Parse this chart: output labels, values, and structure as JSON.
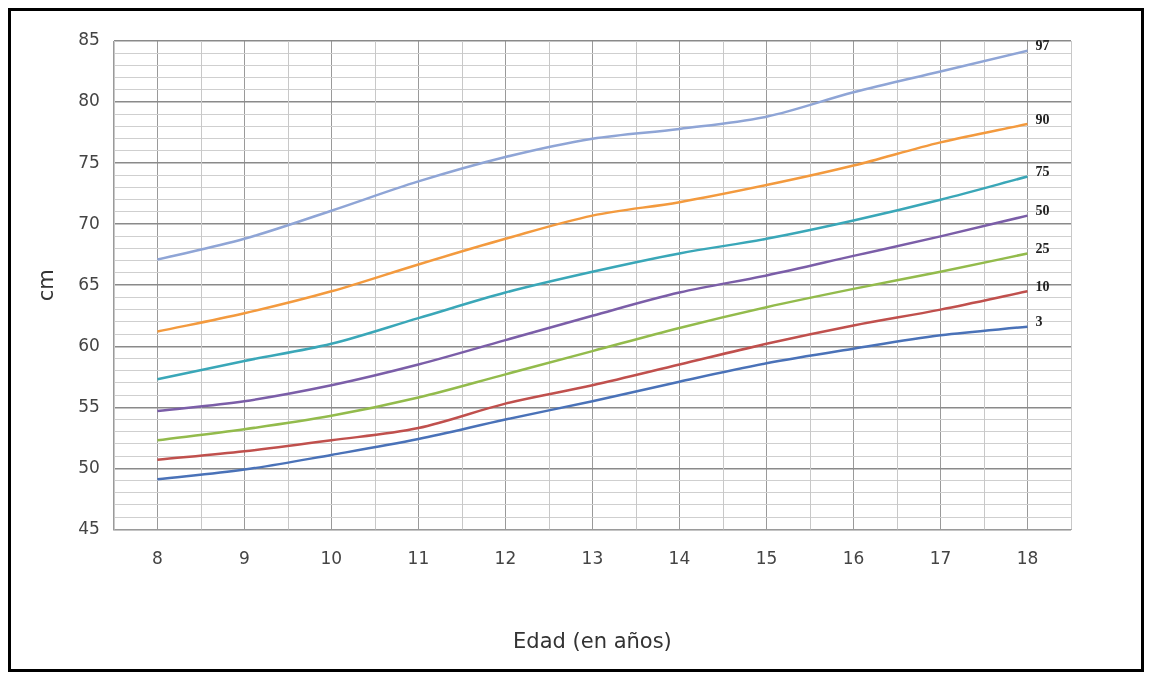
{
  "chart_data": {
    "type": "line",
    "xlabel": "Edad (en años)",
    "ylabel": "cm",
    "categories": [
      "8",
      "9",
      "10",
      "11",
      "12",
      "13",
      "14",
      "15",
      "16",
      "17",
      "18"
    ],
    "ylim": [
      45,
      85
    ],
    "yticks": [
      45,
      {
        "value": 46,
        "label": null
      },
      {
        "value": 47,
        "label": null
      },
      {
        "value": 48,
        "label": null
      },
      {
        "value": 49,
        "label": null
      },
      50,
      {
        "value": 51,
        "label": null
      },
      {
        "value": 52,
        "label": null
      },
      {
        "value": 53,
        "label": null
      },
      {
        "value": 54,
        "label": null
      },
      55,
      {
        "value": 56,
        "label": null
      },
      {
        "value": 57,
        "label": null
      },
      {
        "value": 58,
        "label": null
      },
      {
        "value": 59,
        "label": null
      },
      60,
      {
        "value": 61,
        "label": null
      },
      {
        "value": 62,
        "label": null
      },
      {
        "value": 63,
        "label": null
      },
      {
        "value": 64,
        "label": null
      },
      65,
      {
        "value": 66,
        "label": null
      },
      {
        "value": 67,
        "label": null
      },
      {
        "value": 68,
        "label": null
      },
      {
        "value": 69,
        "label": null
      },
      70,
      {
        "value": 71,
        "label": null
      },
      {
        "value": 72,
        "label": null
      },
      {
        "value": 73,
        "label": null
      },
      {
        "value": 74,
        "label": null
      },
      75,
      {
        "value": 76,
        "label": null
      },
      {
        "value": 77,
        "label": null
      },
      {
        "value": 78,
        "label": null
      },
      {
        "value": 79,
        "label": null
      },
      80,
      {
        "value": 81,
        "label": null
      },
      {
        "value": 82,
        "label": null
      },
      {
        "value": 83,
        "label": null
      },
      {
        "value": 84,
        "label": null
      },
      85
    ],
    "grid": true,
    "legend": false,
    "marker": "none",
    "line_style": "solid",
    "series": [
      {
        "name": "97",
        "color": "#8fa5d6",
        "values": [
          67.1,
          68.8,
          71.1,
          73.5,
          75.5,
          77,
          77.8,
          78.8,
          80.8,
          82.5,
          84.2
        ]
      },
      {
        "name": "90",
        "color": "#f39a3e",
        "values": [
          61.2,
          62.7,
          64.5,
          66.7,
          68.8,
          70.7,
          71.8,
          73.2,
          74.8,
          76.7,
          78.2
        ]
      },
      {
        "name": "75",
        "color": "#3aa7b8",
        "values": [
          57.3,
          58.8,
          60.2,
          62.3,
          64.4,
          66.1,
          67.6,
          68.8,
          70.3,
          72,
          73.9
        ]
      },
      {
        "name": "50",
        "color": "#7b5ea8",
        "values": [
          54.7,
          55.5,
          56.8,
          58.5,
          60.5,
          62.5,
          64.4,
          65.8,
          67.4,
          69,
          70.7
        ]
      },
      {
        "name": "25",
        "color": "#93bb4c",
        "values": [
          52.3,
          53.2,
          54.3,
          55.8,
          57.7,
          59.6,
          61.5,
          63.2,
          64.7,
          66.1,
          67.6
        ]
      },
      {
        "name": "10",
        "color": "#c0504d",
        "values": [
          50.7,
          51.4,
          52.3,
          53.3,
          55.3,
          56.8,
          58.5,
          60.2,
          61.7,
          63,
          64.5
        ]
      },
      {
        "name": "3",
        "color": "#4a72b8",
        "values": [
          49.1,
          49.9,
          51.1,
          52.4,
          54,
          55.5,
          57.1,
          58.6,
          59.8,
          60.9,
          61.6
        ]
      }
    ]
  }
}
